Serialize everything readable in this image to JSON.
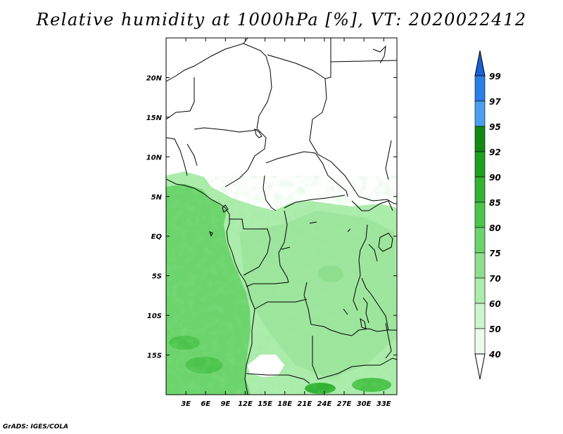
{
  "title": "Relative humidity at 1000hPa [%], VT: 2020022412",
  "credit": "GrADS: IGES/COLA",
  "map": {
    "lon_labels": [
      "3E",
      "6E",
      "9E",
      "12E",
      "15E",
      "18E",
      "21E",
      "24E",
      "27E",
      "30E",
      "33E"
    ],
    "lat_labels": [
      "20N",
      "15N",
      "10N",
      "5N",
      "EQ",
      "5S",
      "10S",
      "15S"
    ],
    "lon_values": [
      3,
      6,
      9,
      12,
      15,
      18,
      21,
      24,
      27,
      30,
      33
    ],
    "lat_values": [
      20,
      15,
      10,
      5,
      0,
      -5,
      -10,
      -15
    ],
    "lon_range": [
      0,
      35
    ],
    "lat_range": [
      -20,
      25
    ]
  },
  "colorbar": {
    "labels": [
      "99",
      "97",
      "95",
      "92",
      "90",
      "85",
      "80",
      "75",
      "70",
      "60",
      "50",
      "40"
    ],
    "colors": [
      "#1a62d8",
      "#2a7ee6",
      "#4aa0ee",
      "#128a12",
      "#20a020",
      "#33b233",
      "#4cc44c",
      "#6cd46c",
      "#8ede8e",
      "#acecac",
      "#cdf5cd",
      "#eafbea"
    ],
    "over_color": "#1a62d8",
    "under_color": "#ffffff"
  }
}
